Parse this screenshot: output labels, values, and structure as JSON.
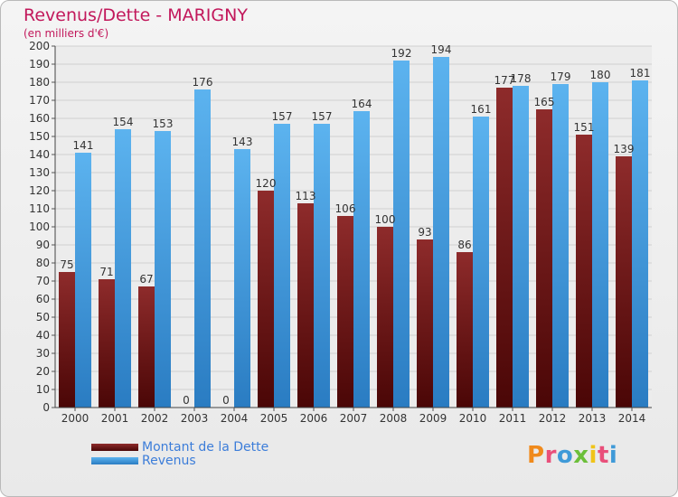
{
  "header": {
    "title": "Revenus/Dette - MARIGNY",
    "subtitle": "(en milliers d'€)"
  },
  "legend": {
    "dette_label": "Montant de la Dette",
    "revenus_label": "Revenus"
  },
  "logo": {
    "text": "Proxiti"
  },
  "colors": {
    "dette": "#7a1f1f",
    "dette_dark": "#5a0d0d",
    "revenus": "#4ea6e6",
    "revenus_dark": "#2c7fc4",
    "title": "#c2185b",
    "legend_text": "#3c7dd9"
  },
  "chart_data": {
    "type": "bar",
    "title": "Revenus/Dette - MARIGNY",
    "subtitle": "(en milliers d'€)",
    "xlabel": "",
    "ylabel": "",
    "ylim": [
      0,
      200
    ],
    "ytick_step": 10,
    "grid": true,
    "legend_position": "bottom-left",
    "categories": [
      "2000",
      "2001",
      "2002",
      "2003",
      "2004",
      "2005",
      "2006",
      "2007",
      "2008",
      "2009",
      "2010",
      "2011",
      "2012",
      "2013",
      "2014"
    ],
    "series": [
      {
        "name": "Montant de la Dette",
        "values": [
          75,
          71,
          67,
          0,
          0,
          120,
          113,
          106,
          100,
          93,
          86,
          177,
          165,
          151,
          139
        ]
      },
      {
        "name": "Revenus",
        "values": [
          141,
          154,
          153,
          176,
          143,
          157,
          157,
          164,
          192,
          194,
          161,
          178,
          179,
          180,
          181
        ]
      }
    ]
  }
}
